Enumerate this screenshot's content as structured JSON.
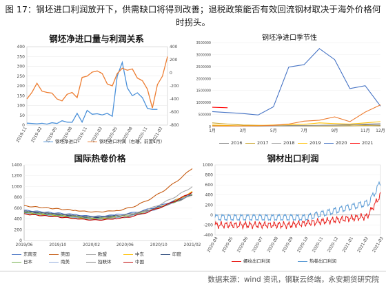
{
  "caption": "图 17：钢坯进口利润放开下，供需缺口将得到改善；退税政策能否有效回流钢材取决于海外价格何时拐头。",
  "source": "数据来源：wind 资讯，钢联云终端，永安期货研究院",
  "chart_data": [
    {
      "type": "line",
      "title": "钢坯净进口量与利润关系",
      "x": [
        "2018-11",
        "2018-12",
        "2019-01",
        "2019-02",
        "2019-03",
        "2019-04",
        "2019-05",
        "2019-06",
        "2019-07",
        "2019-08",
        "2019-09",
        "2019-10",
        "2019-11",
        "2019-12",
        "2020-01",
        "2020-02",
        "2020-03",
        "2020-04",
        "2020-05",
        "2020-06",
        "2020-07",
        "2020-08",
        "2020-09",
        "2020-10",
        "2020-11",
        "2020-12",
        "2021-01",
        "2021-02",
        "2021-03"
      ],
      "xticks": [
        "2018-11",
        "2019-02",
        "2019-05",
        "2019-08",
        "2019-11",
        "2020-02",
        "2020-05",
        "2020-08",
        "2020-11",
        "2021-02"
      ],
      "series": [
        {
          "name": "钢坯净进口",
          "color": "#4a90d9",
          "axis": "left",
          "values": [
            10,
            8,
            6,
            9,
            5,
            12,
            8,
            22,
            15,
            14,
            60,
            15,
            75,
            55,
            58,
            52,
            60,
            45,
            250,
            320,
            190,
            150,
            165,
            140,
            85,
            80,
            80,
            null,
            null
          ]
        },
        {
          "name": "钢坯进口利润（右轴，前置1月）",
          "color": "#ed7d31",
          "axis": "right",
          "values": [
            -400,
            -300,
            -160,
            -280,
            -300,
            -310,
            -400,
            -430,
            -330,
            -300,
            -380,
            -70,
            -50,
            10,
            30,
            -10,
            -170,
            -200,
            -10,
            70,
            40,
            60,
            -80,
            -120,
            -250,
            -540,
            -180,
            -50,
            250
          ]
        }
      ],
      "ylim_left": [
        0,
        400
      ],
      "yticks_left": [
        0,
        50,
        100,
        150,
        200,
        250,
        300,
        350,
        400
      ],
      "ylim_right": [
        -800,
        400
      ],
      "yticks_right": [
        400,
        200,
        0,
        -200,
        -400,
        -600,
        -800
      ]
    },
    {
      "type": "line",
      "title": "钢坯净进口季节性",
      "x": [
        "1月",
        "2月",
        "3月",
        "4月",
        "5月",
        "6月",
        "7月",
        "8月",
        "9月",
        "10月",
        "11月",
        "12月"
      ],
      "ylim": [
        0,
        3500000
      ],
      "yticks": [
        0,
        500000,
        1000000,
        1500000,
        2000000,
        2500000,
        3000000,
        3500000
      ],
      "series": [
        {
          "name": "2016",
          "color": "#7f7f7f",
          "values": [
            30000,
            20000,
            20000,
            20000,
            30000,
            40000,
            40000,
            50000,
            60000,
            80000,
            70000,
            60000
          ]
        },
        {
          "name": "2017",
          "color": "#c9a227",
          "values": [
            150000,
            100000,
            60000,
            50000,
            40000,
            30000,
            20000,
            20000,
            20000,
            30000,
            40000,
            30000
          ]
        },
        {
          "name": "2018",
          "color": "#9e9e9e",
          "values": [
            20000,
            30000,
            20000,
            10000,
            20000,
            20000,
            30000,
            40000,
            50000,
            60000,
            100000,
            120000
          ]
        },
        {
          "name": "2019",
          "color": "#ffc000",
          "values": [
            60000,
            40000,
            30000,
            40000,
            60000,
            80000,
            90000,
            150000,
            120000,
            100000,
            150000,
            200000
          ]
        },
        {
          "name": "2020",
          "color": "#4472c4",
          "values": [
            620000,
            580000,
            540000,
            480000,
            820000,
            2480000,
            2580000,
            3250000,
            2790000,
            1580000,
            1700000,
            850000
          ]
        },
        {
          "name": "2021",
          "color": "#ff0000",
          "values": [
            800000,
            780000,
            null,
            null,
            null,
            null,
            null,
            null,
            null,
            null,
            null,
            null
          ]
        },
        {
          "name": "",
          "color": "#ed7d31",
          "values": [
            20000,
            20000,
            20000,
            30000,
            50000,
            100000,
            220000,
            260000,
            400000,
            200000,
            600000,
            900000
          ]
        }
      ]
    },
    {
      "type": "line",
      "title": "国际热卷价格",
      "x": [
        "2019/06",
        "2019/10",
        "2020/02",
        "2020/06",
        "2020/10",
        "2021/02"
      ],
      "ylim": [
        0,
        1400
      ],
      "yticks": [
        0,
        200,
        400,
        600,
        800,
        1000,
        1200,
        1400
      ],
      "series": [
        {
          "name": "东南亚",
          "color": "#4472c4"
        },
        {
          "name": "美国",
          "color": "#c55a11"
        },
        {
          "name": "欧盟",
          "color": "#a5a5a5"
        },
        {
          "name": "中东",
          "color": "#ffc000"
        },
        {
          "name": "印度",
          "color": "#264478"
        },
        {
          "name": "日本",
          "color": "#70ad47"
        },
        {
          "name": "南美",
          "color": "#8faadc"
        },
        {
          "name": "独联体",
          "color": "#7f7f7f"
        },
        {
          "name": "中国",
          "color": "#c00000"
        }
      ]
    },
    {
      "type": "line",
      "title": "钢材出口利润",
      "x": [
        "2020-04",
        "2020-05",
        "2020-06",
        "2020-07",
        "2020-08",
        "2020-09",
        "2020-10",
        "2020-11",
        "2020-12",
        "2021-01",
        "2021-02",
        "2021-03"
      ],
      "ylim": [
        -400,
        1000
      ],
      "yticks": [
        1000,
        800,
        600,
        400,
        200,
        0,
        -200,
        -400
      ],
      "series": [
        {
          "name": "螺纹出口利润",
          "color": "#e8201c"
        },
        {
          "name": "热卷出口利润",
          "color": "#5b9bd5"
        }
      ]
    }
  ]
}
